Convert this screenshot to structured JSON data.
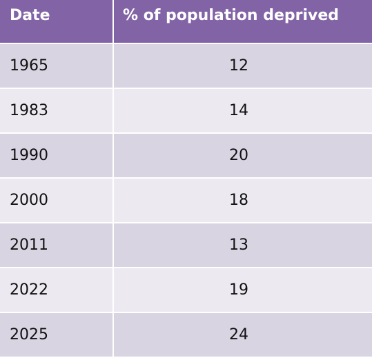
{
  "table": {
    "headers": [
      "Date",
      "% of population deprived"
    ]
  },
  "chart_data": {
    "type": "table",
    "columns": [
      "Date",
      "% of population deprived"
    ],
    "rows": [
      [
        "1965",
        "12"
      ],
      [
        "1983",
        "14"
      ],
      [
        "1990",
        "20"
      ],
      [
        "2000",
        "18"
      ],
      [
        "2011",
        "13"
      ],
      [
        "2022",
        "19"
      ],
      [
        "2025",
        "24"
      ]
    ],
    "colors": {
      "header_bg": "#8263a6",
      "header_text": "#ffffff",
      "row_odd": "#d8d4e2",
      "row_even": "#ece9f1"
    }
  }
}
